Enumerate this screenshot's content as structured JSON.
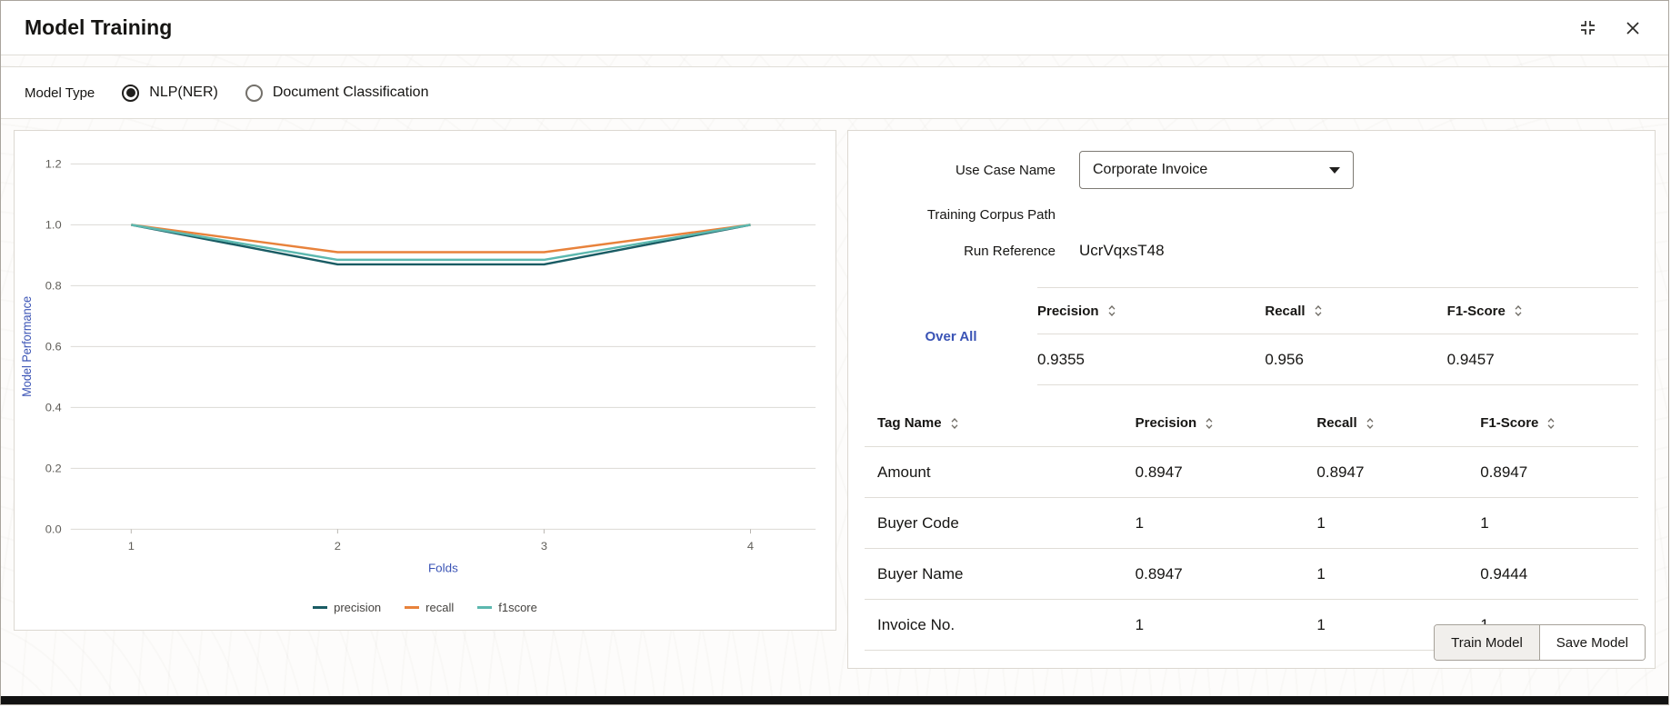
{
  "window": {
    "title": "Model Training",
    "icons": {
      "restore": "restore-window-icon",
      "close": "close-icon"
    }
  },
  "model_type": {
    "label": "Model Type",
    "options": [
      {
        "label": "NLP(NER)",
        "selected": true
      },
      {
        "label": "Document Classification",
        "selected": false
      }
    ]
  },
  "chart_data": {
    "type": "line",
    "x": [
      1,
      2,
      3,
      4
    ],
    "xlabel": "Folds",
    "ylabel": "Model Performance",
    "ylim": [
      0,
      1.2
    ],
    "yticks": [
      0,
      0.2,
      0.4,
      0.6,
      0.8,
      1.0,
      1.2
    ],
    "grid": true,
    "legend_position": "bottom",
    "series": [
      {
        "name": "precision",
        "color": "#1a5c64",
        "values": [
          1.0,
          0.87,
          0.87,
          1.0
        ]
      },
      {
        "name": "recall",
        "color": "#e8823b",
        "values": [
          1.0,
          0.91,
          0.91,
          1.0
        ]
      },
      {
        "name": "f1score",
        "color": "#5cb8af",
        "values": [
          1.0,
          0.885,
          0.885,
          1.0
        ]
      }
    ]
  },
  "form": {
    "use_case_label": "Use Case Name",
    "use_case_value": "Corporate Invoice",
    "training_corpus_label": "Training Corpus Path",
    "run_reference_label": "Run Reference",
    "run_reference_value": "UcrVqxsT48"
  },
  "overall": {
    "label": "Over All",
    "headers": [
      "Precision",
      "Recall",
      "F1-Score"
    ],
    "values": [
      "0.9355",
      "0.956",
      "0.9457"
    ]
  },
  "tags_table": {
    "headers": [
      "Tag Name",
      "Precision",
      "Recall",
      "F1-Score"
    ],
    "rows": [
      [
        "Amount",
        "0.8947",
        "0.8947",
        "0.8947"
      ],
      [
        "Buyer Code",
        "1",
        "1",
        "1"
      ],
      [
        "Buyer Name",
        "0.8947",
        "1",
        "0.9444"
      ],
      [
        "Invoice No.",
        "1",
        "1",
        "1"
      ]
    ]
  },
  "actions": {
    "train": "Train Model",
    "save": "Save Model"
  }
}
